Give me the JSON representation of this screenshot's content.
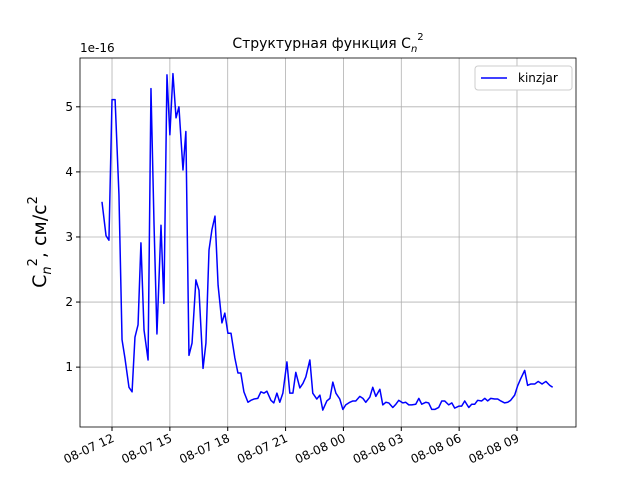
{
  "chart_data": {
    "type": "line",
    "title": {
      "text": "Структурная функция C",
      "sub": "n",
      "sup": "2"
    },
    "ylabel": {
      "text": "C",
      "sub": "n",
      "sup": "2",
      "unit": ", см/с",
      "unit_sup": "2"
    },
    "y_offset_label": "1e-16",
    "xlim": [
      10.34,
      36.06
    ],
    "ylim": [
      0.08,
      5.75
    ],
    "xticks": [
      {
        "value": 12,
        "label": "08-07 12"
      },
      {
        "value": 15,
        "label": "08-07 15"
      },
      {
        "value": 18,
        "label": "08-07 18"
      },
      {
        "value": 21,
        "label": "08-07 21"
      },
      {
        "value": 24,
        "label": "08-08 00"
      },
      {
        "value": 27,
        "label": "08-08 03"
      },
      {
        "value": 30,
        "label": "08-08 06"
      },
      {
        "value": 33,
        "label": "08-08 09"
      }
    ],
    "yticks": [
      1,
      2,
      3,
      4,
      5
    ],
    "grid": true,
    "legend": "upper right",
    "x": [
      11.48,
      11.69,
      11.84,
      12.0,
      12.16,
      12.36,
      12.52,
      12.67,
      12.88,
      13.04,
      13.19,
      13.35,
      13.5,
      13.66,
      13.87,
      14.02,
      14.18,
      14.33,
      14.54,
      14.69,
      14.85,
      15.0,
      15.16,
      15.32,
      15.47,
      15.68,
      15.83,
      15.99,
      16.15,
      16.35,
      16.51,
      16.72,
      16.87,
      17.03,
      17.18,
      17.34,
      17.5,
      17.7,
      17.85,
      18.01,
      18.17,
      18.37,
      18.53,
      18.68,
      18.84,
      19.05,
      19.2,
      19.36,
      19.56,
      19.72,
      19.88,
      20.03,
      20.24,
      20.39,
      20.55,
      20.7,
      20.86,
      21.07,
      21.22,
      21.38,
      21.53,
      21.74,
      21.9,
      22.05,
      22.26,
      22.41,
      22.62,
      22.78,
      22.93,
      23.14,
      23.3,
      23.45,
      23.61,
      23.81,
      23.97,
      24.12,
      24.33,
      24.49,
      24.64,
      24.85,
      25.01,
      25.16,
      25.37,
      25.52,
      25.68,
      25.89,
      26.04,
      26.2,
      26.35,
      26.56,
      26.72,
      26.87,
      27.08,
      27.23,
      27.39,
      27.54,
      27.75,
      27.91,
      28.06,
      28.27,
      28.42,
      28.58,
      28.74,
      28.94,
      29.1,
      29.25,
      29.46,
      29.62,
      29.77,
      29.98,
      30.13,
      30.29,
      30.5,
      30.65,
      30.81,
      30.96,
      31.17,
      31.33,
      31.48,
      31.64,
      31.84,
      32.0,
      32.16,
      32.36,
      32.52,
      32.67,
      32.88,
      33.03,
      33.19,
      33.4,
      33.55,
      33.71,
      33.92,
      34.1,
      34.3,
      34.5,
      34.7,
      34.85
    ],
    "series": [
      {
        "name": "kinzjar",
        "color": "#0000ff",
        "values": [
          3.54,
          3.02,
          2.95,
          5.11,
          5.11,
          3.65,
          1.42,
          1.14,
          0.69,
          0.62,
          1.46,
          1.65,
          2.91,
          1.57,
          1.11,
          5.28,
          3.18,
          1.51,
          3.18,
          1.98,
          5.49,
          4.57,
          5.51,
          4.83,
          5.0,
          4.03,
          4.62,
          1.18,
          1.37,
          2.34,
          2.18,
          0.98,
          1.37,
          2.8,
          3.11,
          3.32,
          2.26,
          1.68,
          1.83,
          1.52,
          1.52,
          1.14,
          0.91,
          0.91,
          0.62,
          0.46,
          0.49,
          0.51,
          0.52,
          0.62,
          0.6,
          0.63,
          0.49,
          0.45,
          0.6,
          0.46,
          0.6,
          1.08,
          0.6,
          0.6,
          0.92,
          0.68,
          0.75,
          0.85,
          1.11,
          0.6,
          0.51,
          0.57,
          0.34,
          0.48,
          0.52,
          0.77,
          0.6,
          0.51,
          0.35,
          0.42,
          0.46,
          0.48,
          0.48,
          0.55,
          0.52,
          0.46,
          0.54,
          0.69,
          0.55,
          0.66,
          0.42,
          0.46,
          0.45,
          0.38,
          0.43,
          0.49,
          0.45,
          0.46,
          0.42,
          0.42,
          0.43,
          0.52,
          0.43,
          0.46,
          0.45,
          0.35,
          0.35,
          0.38,
          0.48,
          0.48,
          0.42,
          0.45,
          0.37,
          0.4,
          0.4,
          0.48,
          0.38,
          0.43,
          0.43,
          0.49,
          0.48,
          0.52,
          0.48,
          0.52,
          0.51,
          0.51,
          0.48,
          0.45,
          0.46,
          0.49,
          0.57,
          0.71,
          0.82,
          0.95,
          0.72,
          0.74,
          0.74,
          0.78,
          0.74,
          0.78,
          0.72,
          0.69
        ]
      }
    ]
  }
}
